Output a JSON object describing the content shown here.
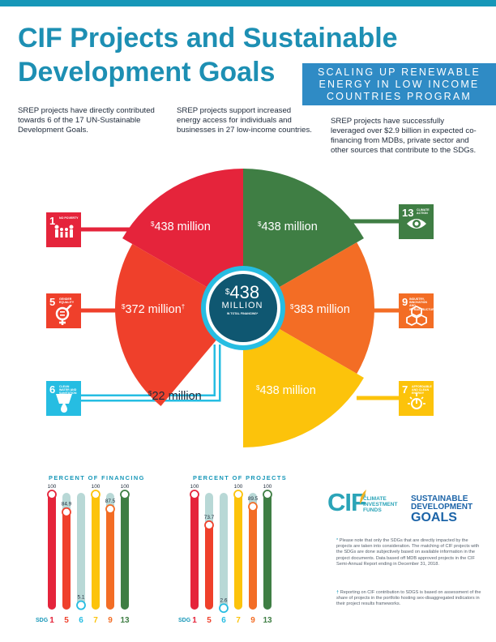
{
  "header": {
    "title_line1": "CIF Projects and Sustainable",
    "title_line2": "Development Goals",
    "banner_line1": "SCALING UP RENEWABLE",
    "banner_line2": "ENERGY IN LOW INCOME",
    "banner_line3": "COUNTRIES PROGRAM"
  },
  "intro": {
    "col1": "SREP projects have directly contributed towards 6 of the 17 UN-Sustainable Development Goals.",
    "col2": "SREP projects support increased energy access for individuals and businesses in 27 low-income countries.",
    "col3": "SREP projects have successfully leveraged over $2.9 billion in expected co-financing from MDBs, private sector and other sources that contribute to the SDGs."
  },
  "colors": {
    "sdg1": "#e5243b",
    "sdg5": "#ef402b",
    "sdg6": "#26bde2",
    "sdg7": "#fcc30b",
    "sdg9": "#f36d25",
    "sdg13": "#3f7e44",
    "bar_background": "#b8d8d6",
    "center": "#0f5771"
  },
  "center": {
    "currency": "$",
    "amount": "438",
    "unit": "MILLION",
    "caption": "IN TOTAL FINANCING*"
  },
  "segments": [
    {
      "sdg": "1",
      "currency": "$",
      "amount": "438 million",
      "marker": "",
      "color": "#e5243b"
    },
    {
      "sdg": "13",
      "currency": "$",
      "amount": "438 million",
      "marker": "",
      "color": "#3f7e44"
    },
    {
      "sdg": "5",
      "currency": "$",
      "amount": "372 million",
      "marker": "†",
      "color": "#ef402b"
    },
    {
      "sdg": "9",
      "currency": "$",
      "amount": "383 million",
      "marker": "",
      "color": "#f36d25"
    },
    {
      "sdg": "6",
      "currency": "$",
      "amount": "22 million",
      "marker": "",
      "color": "#26bde2"
    },
    {
      "sdg": "7",
      "currency": "$",
      "amount": "438 million",
      "marker": "",
      "color": "#fcc30b"
    }
  ],
  "sdg_tiles": [
    {
      "num": "1",
      "label": "NO POVERTY",
      "icon": "family-icon",
      "color": "#e5243b"
    },
    {
      "num": "5",
      "label": "GENDER EQUALITY",
      "icon": "gender-equality-icon",
      "color": "#ef402b"
    },
    {
      "num": "6",
      "label": "CLEAN WATER AND SANITATION",
      "icon": "water-drop-icon",
      "color": "#26bde2"
    },
    {
      "num": "13",
      "label": "CLIMATE ACTION",
      "icon": "eye-globe-icon",
      "color": "#3f7e44"
    },
    {
      "num": "9",
      "label": "INDUSTRY, INNOVATION AND INFRASTRUCTURE",
      "icon": "cubes-icon",
      "color": "#f36d25"
    },
    {
      "num": "7",
      "label": "AFFORDABLE AND CLEAN ENERGY",
      "icon": "sun-power-icon",
      "color": "#fcc30b"
    }
  ],
  "chart_data": [
    {
      "type": "bar",
      "title": "PERCENT OF FINANCING",
      "xlabel": "SDG",
      "categories": [
        "1",
        "5",
        "6",
        "7",
        "9",
        "13"
      ],
      "values": [
        100,
        84.9,
        5.1,
        100,
        87.5,
        100
      ],
      "value_labels": [
        "100",
        "84.9",
        "5.1",
        "100",
        "87.5",
        "100"
      ],
      "colors": [
        "#e5243b",
        "#ef402b",
        "#26bde2",
        "#fcc30b",
        "#f36d25",
        "#3f7e44"
      ],
      "ylim": [
        0,
        100
      ]
    },
    {
      "type": "bar",
      "title": "PERCENT OF PROJECTS",
      "xlabel": "SDG",
      "categories": [
        "1",
        "5",
        "6",
        "7",
        "9",
        "13"
      ],
      "values": [
        100,
        73.7,
        2.6,
        100,
        89.5,
        100
      ],
      "value_labels": [
        "100",
        "73.7",
        "2.6",
        "100",
        "89.5",
        "100"
      ],
      "colors": [
        "#e5243b",
        "#ef402b",
        "#26bde2",
        "#fcc30b",
        "#f36d25",
        "#3f7e44"
      ],
      "ylim": [
        0,
        100
      ]
    }
  ],
  "logos": {
    "cif_letters": "CIF",
    "cif_line1": "CLIMATE",
    "cif_line2": "INVESTMENT",
    "cif_line3": "FUNDS",
    "sdg_line1": "SUSTAINABLE",
    "sdg_line2": "DEVELOPMENT",
    "sdg_line3": "GOALS"
  },
  "notes": {
    "note1_mark": "*",
    "note1": "Please note that only the SDGs that are directly impacted by the projects are taken into consideration. The matching of CIF projects with the SDGs are done subjectively based on available information in the project documents. Data based off MDB approved projects in the CIF Semi-Annual Report ending in December 31, 2018.",
    "note2_mark": "†",
    "note2": "Reporting on CIF contribution to SDGS is based on assessment of the share of projects in the portfolio hosting sex-disaggregated indicators in their project results frameworks."
  }
}
